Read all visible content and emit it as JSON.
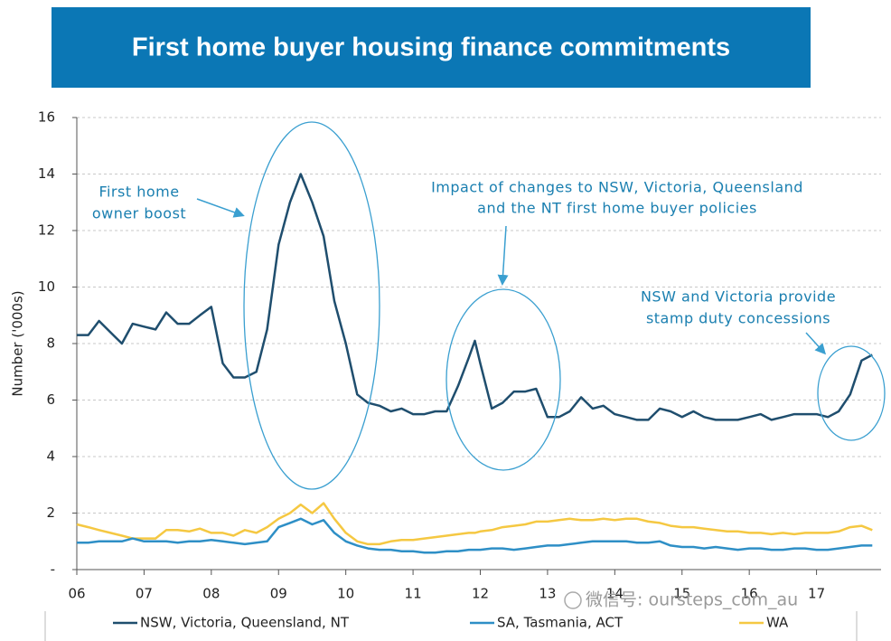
{
  "chart_data": {
    "type": "line",
    "title": "First home buyer housing finance commitments",
    "y_label": "Number ('000s)",
    "x": [
      2006,
      2006.17,
      2006.33,
      2006.5,
      2006.67,
      2006.83,
      2007,
      2007.17,
      2007.33,
      2007.5,
      2007.67,
      2007.83,
      2008,
      2008.17,
      2008.33,
      2008.5,
      2008.67,
      2008.83,
      2009,
      2009.17,
      2009.33,
      2009.5,
      2009.67,
      2009.83,
      2010,
      2010.17,
      2010.33,
      2010.5,
      2010.67,
      2010.83,
      2011,
      2011.17,
      2011.33,
      2011.5,
      2011.67,
      2011.83,
      2011.92,
      2012,
      2012.17,
      2012.33,
      2012.5,
      2012.67,
      2012.83,
      2013,
      2013.17,
      2013.33,
      2013.5,
      2013.67,
      2013.83,
      2014,
      2014.17,
      2014.33,
      2014.5,
      2014.67,
      2014.83,
      2015,
      2015.17,
      2015.33,
      2015.5,
      2015.67,
      2015.83,
      2016,
      2016.17,
      2016.33,
      2016.5,
      2016.67,
      2016.83,
      2017,
      2017.17,
      2017.33,
      2017.5,
      2017.67,
      2017.83
    ],
    "series": [
      {
        "name": "NSW, Victoria, Queensland, NT",
        "color": "#1f4e6e",
        "values": [
          8.3,
          8.3,
          8.8,
          8.4,
          8.0,
          8.7,
          8.6,
          8.5,
          9.1,
          8.7,
          8.7,
          9.0,
          9.3,
          7.3,
          6.8,
          6.8,
          7.0,
          8.5,
          11.5,
          13.0,
          14.0,
          13.0,
          11.8,
          9.5,
          8.0,
          6.2,
          5.9,
          5.8,
          5.6,
          5.7,
          5.5,
          5.5,
          5.6,
          5.6,
          6.5,
          7.5,
          8.1,
          7.3,
          5.7,
          5.9,
          6.3,
          6.3,
          6.4,
          5.4,
          5.4,
          5.6,
          6.1,
          5.7,
          5.8,
          5.5,
          5.4,
          5.3,
          5.3,
          5.7,
          5.6,
          5.4,
          5.6,
          5.4,
          5.3,
          5.3,
          5.3,
          5.4,
          5.5,
          5.3,
          5.4,
          5.5,
          5.5,
          5.5,
          5.4,
          5.6,
          6.2,
          7.4,
          7.6
        ]
      },
      {
        "name": "SA, Tasmania, ACT",
        "color": "#2e8fc6",
        "values": [
          0.95,
          0.95,
          1.0,
          1.0,
          1.0,
          1.1,
          1.0,
          1.0,
          1.0,
          0.95,
          1.0,
          1.0,
          1.05,
          1.0,
          0.95,
          0.9,
          0.95,
          1.0,
          1.5,
          1.65,
          1.8,
          1.6,
          1.75,
          1.3,
          1.0,
          0.85,
          0.75,
          0.7,
          0.7,
          0.65,
          0.65,
          0.6,
          0.6,
          0.65,
          0.65,
          0.7,
          0.7,
          0.7,
          0.75,
          0.75,
          0.7,
          0.75,
          0.8,
          0.85,
          0.85,
          0.9,
          0.95,
          1.0,
          1.0,
          1.0,
          1.0,
          0.95,
          0.95,
          1.0,
          0.85,
          0.8,
          0.8,
          0.75,
          0.8,
          0.75,
          0.7,
          0.75,
          0.75,
          0.7,
          0.7,
          0.75,
          0.75,
          0.7,
          0.7,
          0.75,
          0.8,
          0.85,
          0.85
        ]
      },
      {
        "name": "WA",
        "color": "#f5c842",
        "values": [
          1.6,
          1.5,
          1.4,
          1.3,
          1.2,
          1.1,
          1.1,
          1.1,
          1.4,
          1.4,
          1.35,
          1.45,
          1.3,
          1.3,
          1.2,
          1.4,
          1.3,
          1.5,
          1.8,
          2.0,
          2.3,
          2.0,
          2.35,
          1.8,
          1.3,
          1.0,
          0.9,
          0.9,
          1.0,
          1.05,
          1.05,
          1.1,
          1.15,
          1.2,
          1.25,
          1.3,
          1.3,
          1.35,
          1.4,
          1.5,
          1.55,
          1.6,
          1.7,
          1.7,
          1.75,
          1.8,
          1.75,
          1.75,
          1.8,
          1.75,
          1.8,
          1.8,
          1.7,
          1.65,
          1.55,
          1.5,
          1.5,
          1.45,
          1.4,
          1.35,
          1.35,
          1.3,
          1.3,
          1.25,
          1.3,
          1.25,
          1.3,
          1.3,
          1.3,
          1.35,
          1.5,
          1.55,
          1.4
        ]
      }
    ],
    "xlim": [
      2006,
      2018
    ],
    "xticks": [
      {
        "value": 2006,
        "label": "06"
      },
      {
        "value": 2007,
        "label": "07"
      },
      {
        "value": 2008,
        "label": "08"
      },
      {
        "value": 2009,
        "label": "09"
      },
      {
        "value": 2010,
        "label": "10"
      },
      {
        "value": 2011,
        "label": "11"
      },
      {
        "value": 2012,
        "label": "12"
      },
      {
        "value": 2013,
        "label": "13"
      },
      {
        "value": 2014,
        "label": "14"
      },
      {
        "value": 2015,
        "label": "15"
      },
      {
        "value": 2016,
        "label": "16"
      },
      {
        "value": 2017,
        "label": "17"
      }
    ],
    "ylim": [
      0,
      16
    ],
    "yticks": [
      {
        "value": 0,
        "label": "-"
      },
      2,
      4,
      6,
      8,
      10,
      12,
      14,
      16
    ],
    "grid": true,
    "legend": "bottom",
    "annotations": [
      {
        "lines": [
          "First home",
          "owner boost"
        ]
      },
      {
        "lines": [
          "Impact of changes to NSW, Victoria, Queensland",
          "and the NT first home buyer policies"
        ]
      },
      {
        "lines": [
          "NSW and Victoria provide",
          "stamp duty concessions"
        ]
      }
    ],
    "watermark": "微信号: oursteps_com_au"
  }
}
